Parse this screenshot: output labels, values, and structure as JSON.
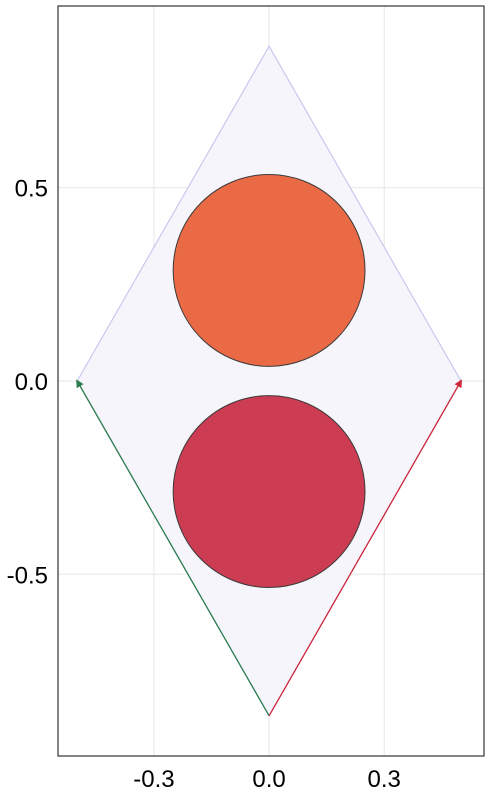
{
  "chart_data": {
    "type": "diagram",
    "title": "",
    "xlabel": "",
    "ylabel": "",
    "xlim": [
      -0.55,
      0.56
    ],
    "ylim": [
      -0.97,
      0.97
    ],
    "grid": true,
    "x_ticks": [
      {
        "value": -0.3,
        "label": "-0.3"
      },
      {
        "value": 0.0,
        "label": "0.0"
      },
      {
        "value": 0.3,
        "label": "0.3"
      }
    ],
    "y_ticks": [
      {
        "value": 0.5,
        "label": "0.5"
      },
      {
        "value": 0.0,
        "label": "0.0"
      },
      {
        "value": -0.5,
        "label": "-0.5"
      }
    ],
    "rhombus": {
      "vertices": [
        [
          0,
          0.866
        ],
        [
          0.5,
          0
        ],
        [
          0,
          -0.866
        ],
        [
          -0.5,
          0
        ]
      ],
      "fill": "#f5f5fb",
      "stroke": "#c8c8f0"
    },
    "circles": [
      {
        "name": "upper",
        "cx": 0,
        "cy": 0.286,
        "r": 0.25,
        "fill": "#ea6a46",
        "stroke": "#3a3a3a"
      },
      {
        "name": "lower",
        "cx": 0,
        "cy": -0.286,
        "r": 0.25,
        "fill": "#cc3c52",
        "stroke": "#3a3a3a"
      }
    ],
    "vectors": [
      {
        "name": "green",
        "from": [
          0,
          -0.866
        ],
        "to": [
          -0.5,
          0
        ],
        "color": "#2e7d4f"
      },
      {
        "name": "red",
        "from": [
          0,
          -0.866
        ],
        "to": [
          0.5,
          0
        ],
        "color": "#d0283c"
      }
    ]
  }
}
